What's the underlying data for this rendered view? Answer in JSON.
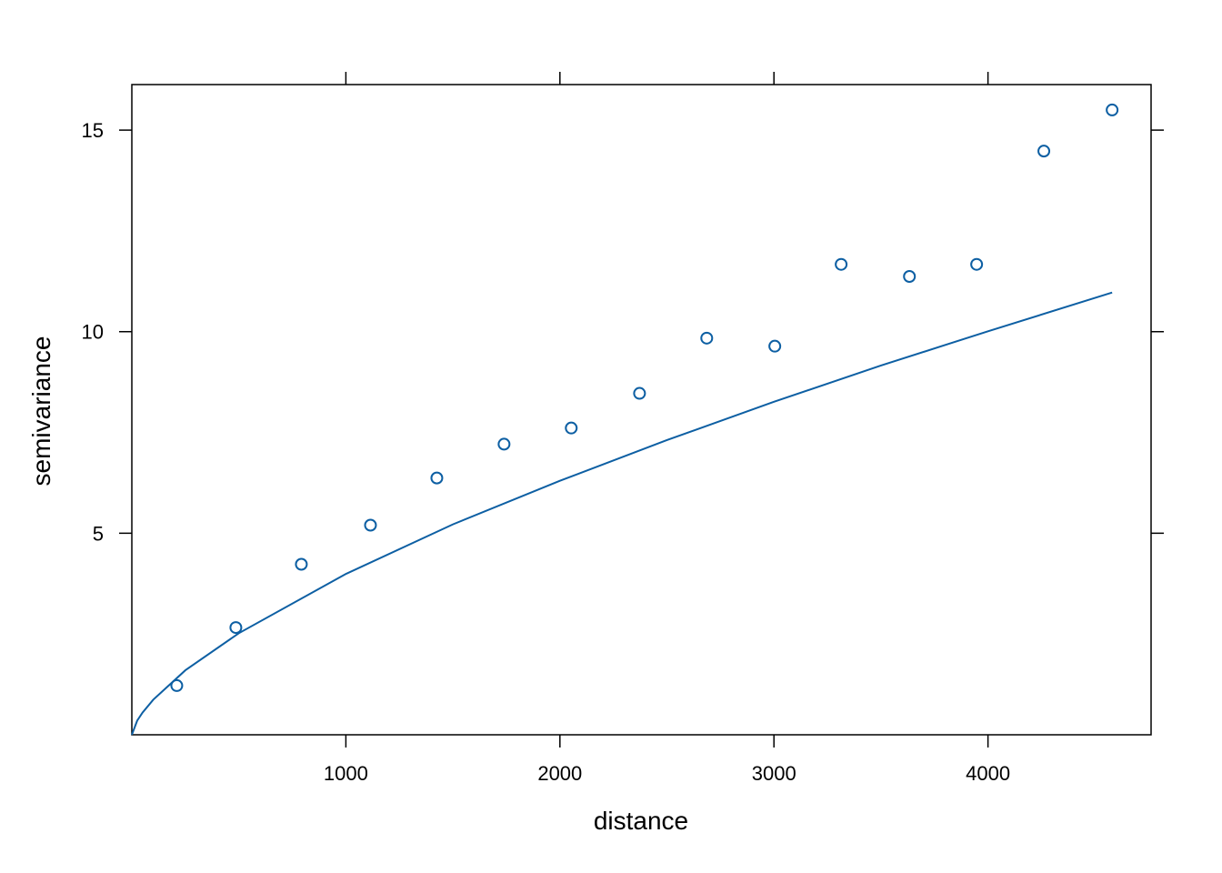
{
  "chart_data": {
    "type": "scatter",
    "xlabel": "distance",
    "ylabel": "semivariance",
    "xlim": [
      0,
      4762
    ],
    "ylim": [
      0,
      16.13
    ],
    "xticks": [
      1000,
      2000,
      3000,
      4000
    ],
    "yticks": [
      5,
      10,
      15
    ],
    "series": [
      {
        "type": "scatter",
        "color": "#0d5fa3",
        "x": [
          210,
          486,
          792,
          1115,
          1425,
          1739,
          2053,
          2372,
          2686,
          3004,
          3314,
          3633,
          3947,
          4261,
          4580
        ],
        "values": [
          1.22,
          2.66,
          4.23,
          5.2,
          6.37,
          7.21,
          7.61,
          8.47,
          9.84,
          9.64,
          11.67,
          11.37,
          11.67,
          14.48,
          15.5
        ]
      },
      {
        "type": "line",
        "color": "#0d5fa3",
        "x": [
          0,
          25,
          50,
          100,
          250,
          500,
          1000,
          1500,
          2000,
          2500,
          3000,
          3500,
          4000,
          4580
        ],
        "values": [
          0,
          0.35,
          0.55,
          0.87,
          1.6,
          2.52,
          3.99,
          5.22,
          6.3,
          7.31,
          8.26,
          9.16,
          10.01,
          10.97
        ]
      }
    ]
  }
}
